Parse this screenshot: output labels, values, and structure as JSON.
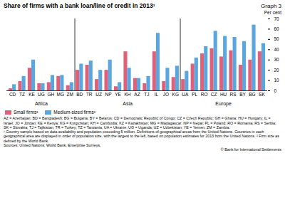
{
  "chart_data": {
    "type": "bar",
    "title": "Share of firms with a bank loan/line of credit in 2013¹",
    "subtitle": "Graph 3",
    "ylabel": "Per cent",
    "categories": [
      "CD",
      "TZ",
      "KE",
      "UG",
      "GH",
      "MG",
      "ZM",
      "BD",
      "TR",
      "UZ",
      "NP",
      "YE",
      "KH",
      "AZ",
      "TJ",
      "IL",
      "JO",
      "KG",
      "UA",
      "PL",
      "RO",
      "CZ",
      "HU",
      "RS",
      "BY",
      "BG",
      "SK"
    ],
    "regions": [
      {
        "name": "Africa",
        "count": 7
      },
      {
        "name": "Asia",
        "count": 11
      },
      {
        "name": "Europe",
        "count": 9
      }
    ],
    "series": [
      {
        "name": "Small firms²",
        "color": "#e0607a",
        "values": [
          2,
          9,
          22,
          7,
          8,
          14,
          5,
          20,
          25,
          11,
          20,
          4,
          38,
          12,
          7,
          38,
          9,
          13,
          11,
          26,
          36,
          41,
          33,
          39,
          25,
          30,
          38
        ]
      },
      {
        "name": "Medium-sized firms²",
        "color": "#5aa7e0",
        "values": [
          6,
          14,
          30,
          7,
          15,
          15,
          8,
          26,
          29,
          20,
          30,
          8,
          22,
          12,
          14,
          56,
          22,
          24,
          19,
          32,
          43,
          58,
          53,
          52,
          48,
          64,
          46
        ]
      }
    ],
    "ylim": [
      0,
      70
    ],
    "yticks": [
      0,
      10,
      20,
      30,
      40,
      50,
      60,
      70
    ],
    "grid": false,
    "legend": "bottom-left",
    "notes": [
      "AZ = Azerbaijan; BD = Bangladesh; BG = Bulgaria; BY = Belarus; CD = Democratic Republic of Congo; CZ = Czech Republic; GH = Ghana; HU = Hungary; IL = Israel; JO = Jordan; KE = Kenya; KG = Kyrgyzstan; KH = Cambodia; KZ = Kazakhstan; MG = Madagascar; NP = Nepal; PL = Poland; RO = Romania; RS = Serbia; SK = Slovakia; TJ = Tajikistan; TR = Turkey; TZ = Tanzania; UA = Ukraine; UG = Uganda; UZ = Uzbekistan; YE = Yemen; ZM = Zambia.",
      "¹ Country sample based on data availability and population exceeding 5 million. Definitions of geographical areas from the United Nations. Countries in each geographical area are displayed in order of population size, with the largest to the left, based on population estimates for 2013 from the United Nations.   ² Firm size as defined by the World Bank.",
      "Sources: United Nations; World Bank, Enterprise Surveys."
    ],
    "copyright": "© Bank for International Settlements"
  }
}
